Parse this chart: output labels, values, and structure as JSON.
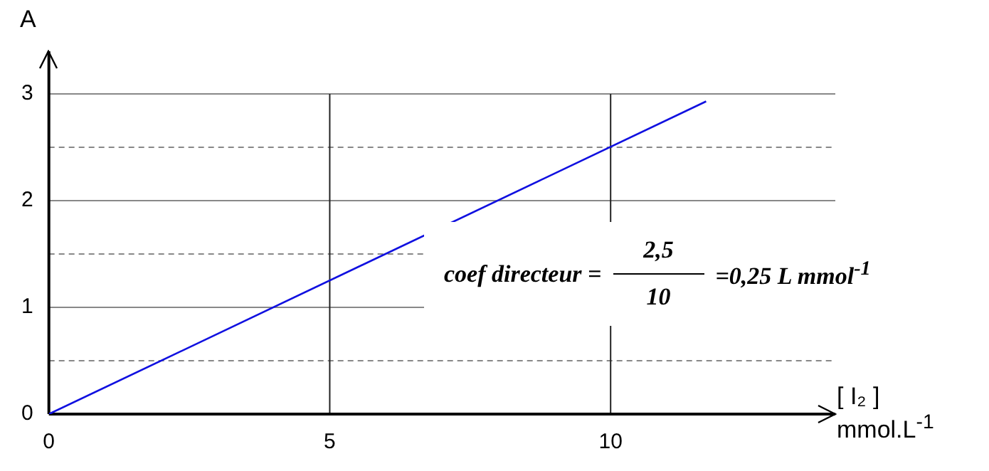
{
  "chart_data": {
    "type": "line",
    "xlabel": "[ I₂ ]\nmmol.L$^{-1}$",
    "ylabel": "A",
    "x": [
      0,
      11.7
    ],
    "series": [
      {
        "color": "#1010e0",
        "values": [
          0,
          2.93
        ]
      }
    ],
    "xlim": [
      0,
      14
    ],
    "xticks": [
      0,
      5,
      10
    ],
    "ylim": [
      0,
      3.4
    ],
    "yticks": [
      0,
      {
        "value": 0.5,
        "label": null
      },
      1,
      {
        "value": 1.5,
        "label": null
      },
      2,
      {
        "value": 2.5,
        "label": null
      },
      3
    ],
    "grid": true,
    "legend": false,
    "marker": "none",
    "line_style": "solid",
    "annotations": [
      "coef directeur =",
      "2,5",
      "10",
      "=0,25 L mmol$^{-1}$"
    ]
  }
}
